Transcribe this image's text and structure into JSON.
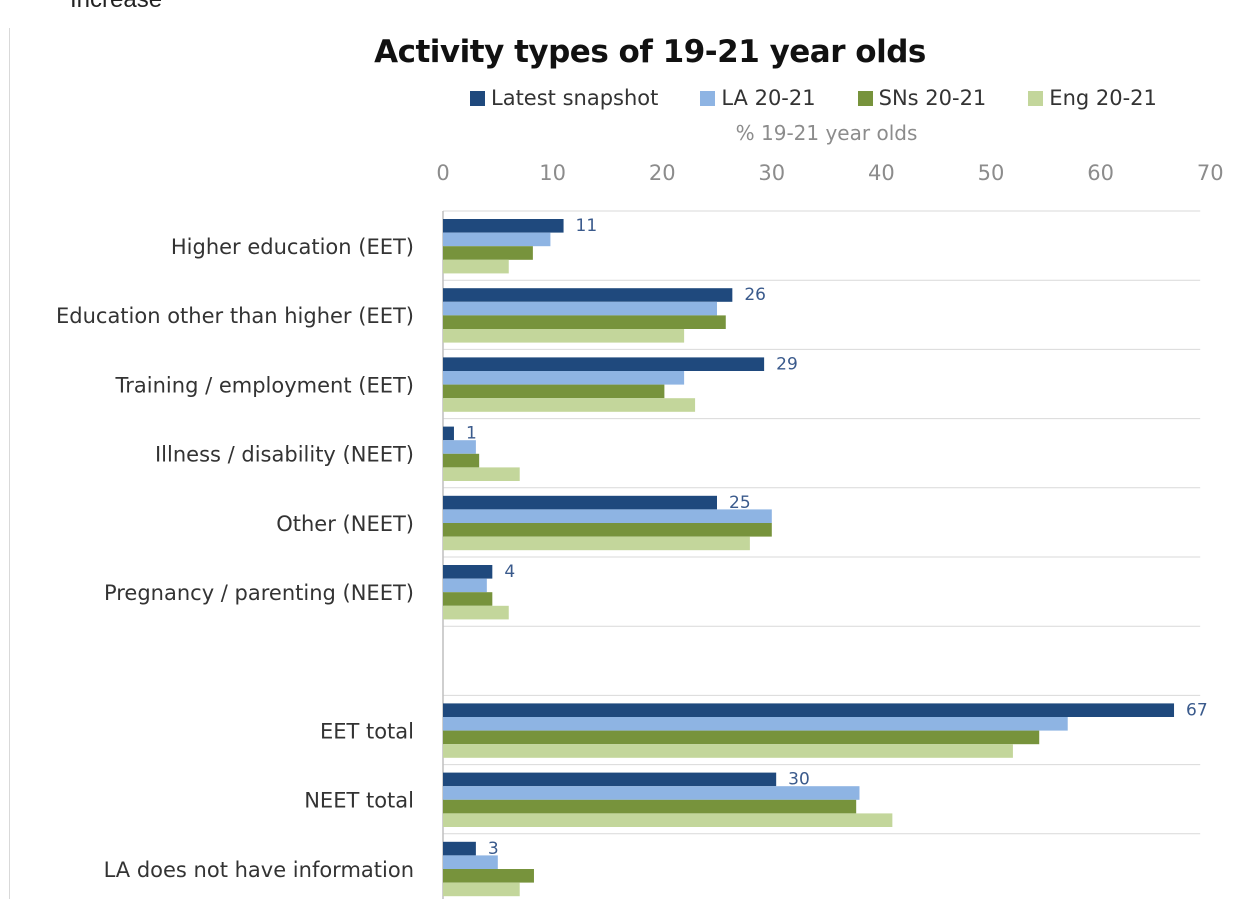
{
  "fragment_text": "Increase",
  "chart_data": {
    "type": "bar",
    "orientation": "horizontal",
    "title": "Activity types of 19-21 year olds",
    "xlabel": "% 19-21 year olds",
    "xlim": [
      0,
      70
    ],
    "xticks": [
      "0",
      "10",
      "20",
      "30",
      "40",
      "50",
      "60",
      "70"
    ],
    "grid": "horizontal separators between categories",
    "legend_position": "top",
    "categories": [
      "Higher education (EET)",
      "Education other than higher (EET)",
      "Training / employment (EET)",
      "Illness / disability (NEET)",
      "Other (NEET)",
      "Pregnancy / parenting (NEET)",
      "",
      "EET total",
      "NEET total",
      "LA does not have information"
    ],
    "series": [
      {
        "name": "Latest snapshot",
        "color": "#1f497d",
        "values": [
          11,
          26.4,
          29.3,
          1,
          25,
          4.5,
          null,
          66.7,
          30.4,
          3
        ]
      },
      {
        "name": "LA 20-21",
        "color": "#8eb4e3",
        "values": [
          9.8,
          25,
          22,
          3,
          30,
          4,
          null,
          57,
          38,
          5
        ]
      },
      {
        "name": "SNs 20-21",
        "color": "#77933c",
        "values": [
          8.2,
          25.8,
          20.2,
          3.3,
          30,
          4.5,
          null,
          54.4,
          37.7,
          8.3
        ]
      },
      {
        "name": "Eng 20-21",
        "color": "#c3d69b",
        "values": [
          6,
          22,
          23,
          7,
          28,
          6,
          null,
          52,
          41,
          7
        ]
      }
    ],
    "data_labels": [
      "11",
      "26",
      "29",
      "1",
      "25",
      "4",
      "",
      "67",
      "30",
      "3"
    ]
  }
}
